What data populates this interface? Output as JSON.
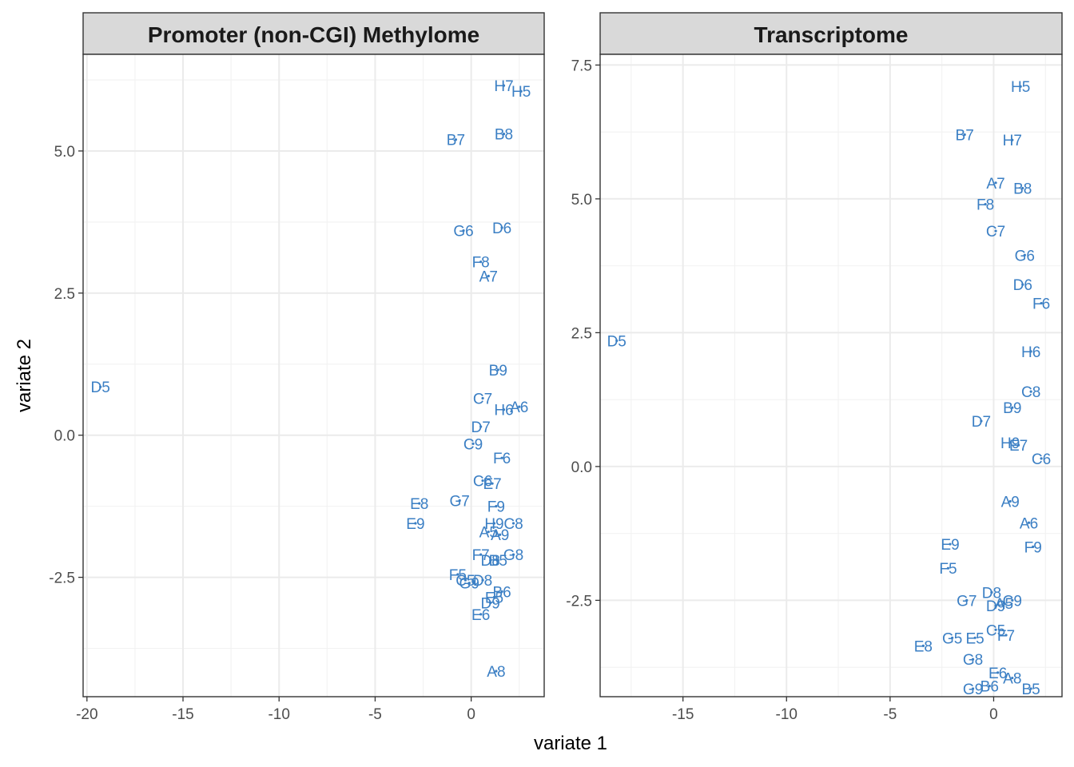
{
  "chart_data": {
    "type": "scatter",
    "xlabel": "variate 1",
    "ylabel": "variate 2",
    "point_color": "#3b7fc4",
    "grid": true,
    "facets": [
      {
        "title": "Promoter (non-CGI) Methylome",
        "xlim": [
          -20.2,
          3.8
        ],
        "ylim": [
          -4.6,
          6.7
        ],
        "x_ticks": [
          -20,
          -15,
          -10,
          -5,
          0
        ],
        "y_ticks": [
          -2.5,
          0.0,
          2.5,
          5.0
        ],
        "x_tick_labels": [
          "-20",
          "-15",
          "-10",
          "-5",
          "0"
        ],
        "y_tick_labels": [
          "-2.5",
          "0.0",
          "2.5",
          "5.0"
        ],
        "points": [
          {
            "label": "H7",
            "x": 1.7,
            "y": 6.15
          },
          {
            "label": "H5",
            "x": 2.6,
            "y": 6.05
          },
          {
            "label": "B8",
            "x": 1.7,
            "y": 5.3
          },
          {
            "label": "B7",
            "x": -0.8,
            "y": 5.2
          },
          {
            "label": "D6",
            "x": 1.6,
            "y": 3.65
          },
          {
            "label": "G6",
            "x": -0.4,
            "y": 3.6
          },
          {
            "label": "F8",
            "x": 0.5,
            "y": 3.05
          },
          {
            "label": "A7",
            "x": 0.9,
            "y": 2.8
          },
          {
            "label": "D5",
            "x": -19.3,
            "y": 0.85
          },
          {
            "label": "B9",
            "x": 1.4,
            "y": 1.15
          },
          {
            "label": "C7",
            "x": 0.6,
            "y": 0.65
          },
          {
            "label": "A6",
            "x": 2.5,
            "y": 0.5
          },
          {
            "label": "H6",
            "x": 1.7,
            "y": 0.45
          },
          {
            "label": "D7",
            "x": 0.5,
            "y": 0.15
          },
          {
            "label": "C9",
            "x": 0.1,
            "y": -0.15
          },
          {
            "label": "F6",
            "x": 1.6,
            "y": -0.4
          },
          {
            "label": "C6",
            "x": 0.6,
            "y": -0.8
          },
          {
            "label": "E7",
            "x": 1.1,
            "y": -0.85
          },
          {
            "label": "E8",
            "x": -2.7,
            "y": -1.2
          },
          {
            "label": "G7",
            "x": -0.6,
            "y": -1.15
          },
          {
            "label": "F9",
            "x": 1.3,
            "y": -1.25
          },
          {
            "label": "E9",
            "x": -2.9,
            "y": -1.55
          },
          {
            "label": "C8",
            "x": 2.2,
            "y": -1.55
          },
          {
            "label": "H9",
            "x": 1.2,
            "y": -1.55
          },
          {
            "label": "A5",
            "x": 0.9,
            "y": -1.7
          },
          {
            "label": "A9",
            "x": 1.5,
            "y": -1.75
          },
          {
            "label": "F7",
            "x": 0.5,
            "y": -2.1
          },
          {
            "label": "G8",
            "x": 2.2,
            "y": -2.1
          },
          {
            "label": "D8",
            "x": 1.0,
            "y": -2.2
          },
          {
            "label": "B5",
            "x": 1.4,
            "y": -2.2
          },
          {
            "label": "F5",
            "x": -0.7,
            "y": -2.45
          },
          {
            "label": "C5",
            "x": -0.3,
            "y": -2.55
          },
          {
            "label": "G9",
            "x": -0.1,
            "y": -2.6
          },
          {
            "label": "D8",
            "x": 0.6,
            "y": -2.55
          },
          {
            "label": "B6",
            "x": 1.6,
            "y": -2.75
          },
          {
            "label": "E5",
            "x": 1.2,
            "y": -2.85
          },
          {
            "label": "D9",
            "x": 1.0,
            "y": -2.95
          },
          {
            "label": "E6",
            "x": 0.5,
            "y": -3.15
          },
          {
            "label": "A8",
            "x": 1.3,
            "y": -4.15
          }
        ]
      },
      {
        "title": "Transcriptome",
        "xlim": [
          -19.0,
          3.3
        ],
        "ylim": [
          -4.3,
          7.7
        ],
        "x_ticks": [
          -15,
          -10,
          -5,
          0
        ],
        "y_ticks": [
          -2.5,
          0.0,
          2.5,
          5.0,
          7.5
        ],
        "x_tick_labels": [
          "-15",
          "-10",
          "-5",
          "0"
        ],
        "y_tick_labels": [
          "-2.5",
          "0.0",
          "2.5",
          "5.0",
          "7.5"
        ],
        "points": [
          {
            "label": "H5",
            "x": 1.3,
            "y": 7.1
          },
          {
            "label": "B7",
            "x": -1.4,
            "y": 6.2
          },
          {
            "label": "H7",
            "x": 0.9,
            "y": 6.1
          },
          {
            "label": "A7",
            "x": 0.1,
            "y": 5.3
          },
          {
            "label": "B8",
            "x": 1.4,
            "y": 5.2
          },
          {
            "label": "F8",
            "x": -0.4,
            "y": 4.9
          },
          {
            "label": "C7",
            "x": 0.1,
            "y": 4.4
          },
          {
            "label": "G6",
            "x": 1.5,
            "y": 3.95
          },
          {
            "label": "D6",
            "x": 1.4,
            "y": 3.4
          },
          {
            "label": "F6",
            "x": 2.3,
            "y": 3.05
          },
          {
            "label": "D5",
            "x": -18.2,
            "y": 2.35
          },
          {
            "label": "H6",
            "x": 1.8,
            "y": 2.15
          },
          {
            "label": "C8",
            "x": 1.8,
            "y": 1.4
          },
          {
            "label": "B9",
            "x": 0.9,
            "y": 1.1
          },
          {
            "label": "D7",
            "x": -0.6,
            "y": 0.85
          },
          {
            "label": "H9",
            "x": 0.8,
            "y": 0.45
          },
          {
            "label": "E7",
            "x": 1.2,
            "y": 0.4
          },
          {
            "label": "C6",
            "x": 2.3,
            "y": 0.15
          },
          {
            "label": "A9",
            "x": 0.8,
            "y": -0.65
          },
          {
            "label": "A6",
            "x": 1.7,
            "y": -1.05
          },
          {
            "label": "E9",
            "x": -2.1,
            "y": -1.45
          },
          {
            "label": "F9",
            "x": 1.9,
            "y": -1.5
          },
          {
            "label": "F5",
            "x": -2.2,
            "y": -1.9
          },
          {
            "label": "D8",
            "x": -0.1,
            "y": -2.35
          },
          {
            "label": "G7",
            "x": -1.3,
            "y": -2.5
          },
          {
            "label": "C9",
            "x": 0.9,
            "y": -2.5
          },
          {
            "label": "A5",
            "x": 0.5,
            "y": -2.55
          },
          {
            "label": "D9",
            "x": 0.1,
            "y": -2.6
          },
          {
            "label": "C5",
            "x": 0.1,
            "y": -3.05
          },
          {
            "label": "F7",
            "x": 0.6,
            "y": -3.15
          },
          {
            "label": "G5",
            "x": -2.0,
            "y": -3.2
          },
          {
            "label": "E5",
            "x": -0.9,
            "y": -3.2
          },
          {
            "label": "E8",
            "x": -3.4,
            "y": -3.35
          },
          {
            "label": "G8",
            "x": -1.0,
            "y": -3.6
          },
          {
            "label": "E6",
            "x": 0.2,
            "y": -3.85
          },
          {
            "label": "A8",
            "x": 0.9,
            "y": -3.95
          },
          {
            "label": "G9",
            "x": -1.0,
            "y": -4.15
          },
          {
            "label": "B6",
            "x": -0.2,
            "y": -4.1
          },
          {
            "label": "B5",
            "x": 1.8,
            "y": -4.15
          }
        ]
      }
    ]
  }
}
